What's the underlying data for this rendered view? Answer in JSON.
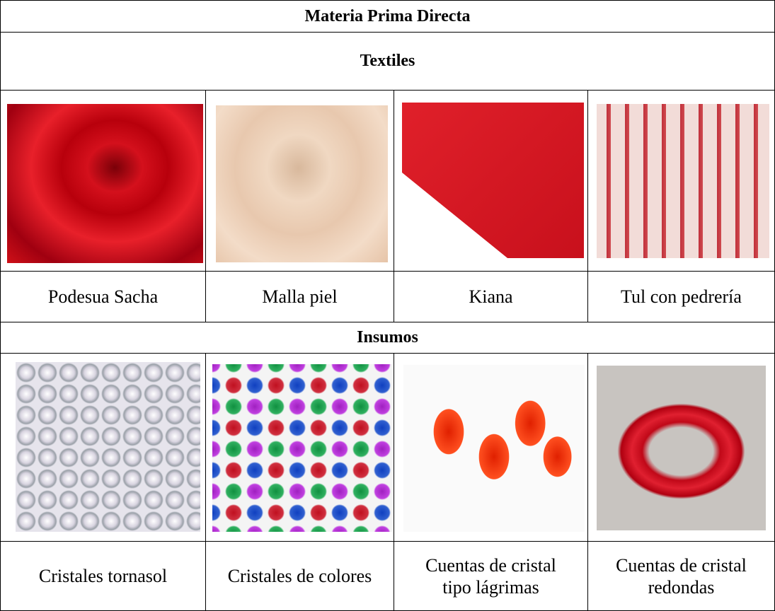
{
  "table": {
    "title": "Materia Prima Directa",
    "sections": [
      {
        "heading": "Textiles",
        "items": [
          "Podesua Sacha",
          "Malla piel",
          "Kiana",
          "Tul con pedrería"
        ]
      },
      {
        "heading": "Insumos",
        "items": [
          "Cristales tornasol",
          "Cristales de colores",
          "Cuentas de cristal tipo lágrimas",
          "Cuentas de cristal redondas"
        ]
      }
    ]
  }
}
